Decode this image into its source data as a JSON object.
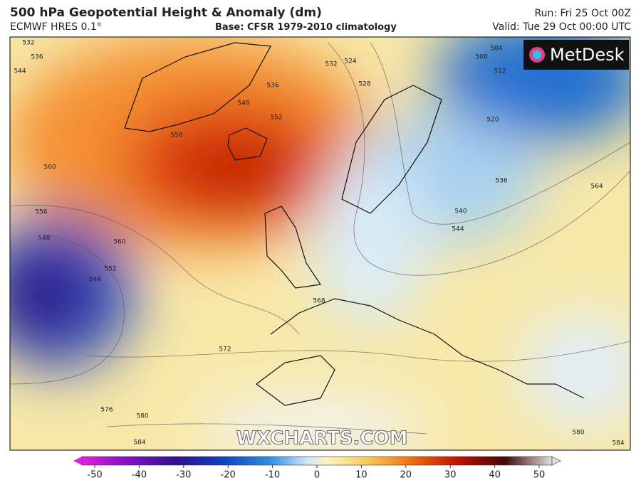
{
  "header": {
    "title": "500 hPa Geopotential Height & Anomaly (dm)",
    "model": "ECMWF HRES 0.1°",
    "base": "Base: CFSR 1979-2010 climatology",
    "run": "Run: Fri 25 Oct 00Z",
    "valid": "Valid: Tue 29 Oct 00:00 UTC"
  },
  "map": {
    "logo": "MetDesk",
    "watermark": "WXCHARTS.COM",
    "contour_labels": [
      532,
      536,
      544,
      548,
      552,
      556,
      560,
      556,
      548,
      560,
      552,
      544,
      572,
      576,
      580,
      584,
      536,
      532,
      524,
      528,
      504,
      508,
      512,
      520,
      536,
      540,
      544,
      564,
      568,
      580,
      584
    ]
  },
  "colorbar": {
    "lim": [
      -50,
      50
    ],
    "ticks": [
      -50,
      -40,
      -30,
      -20,
      -10,
      0,
      10,
      20,
      30,
      40,
      50
    ]
  }
}
